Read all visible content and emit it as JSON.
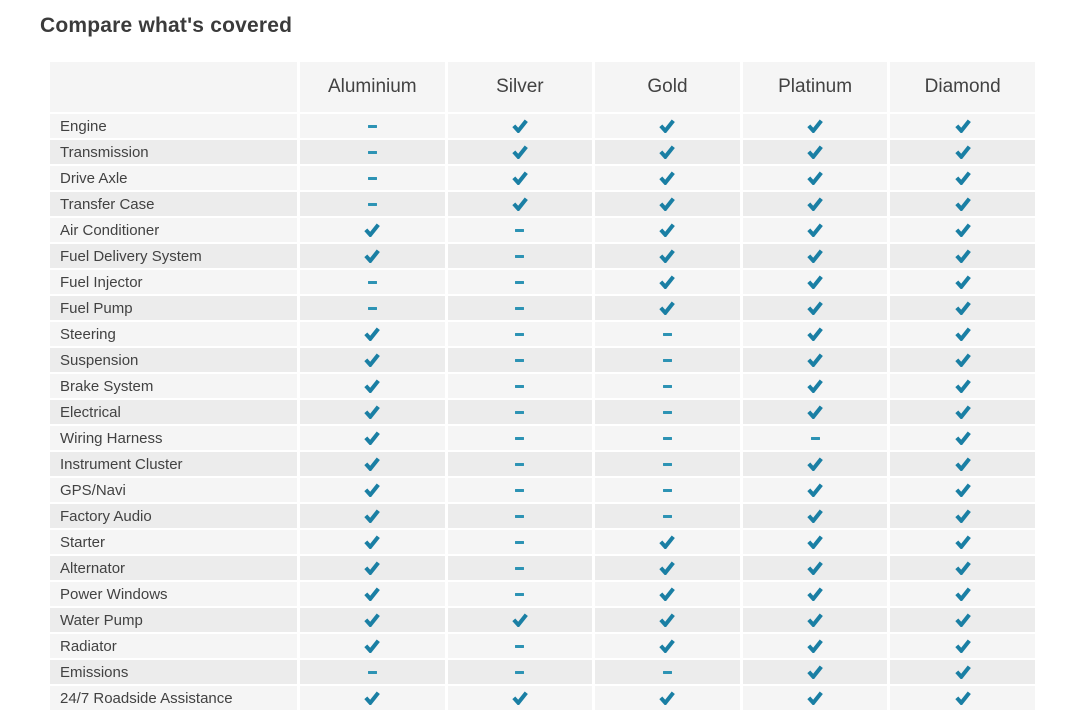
{
  "page": {
    "title": "Compare what's covered"
  },
  "table": {
    "plans": [
      "Aluminium",
      "Silver",
      "Gold",
      "Platinum",
      "Diamond"
    ],
    "rows": [
      {
        "feature": "Engine",
        "covered": [
          false,
          true,
          true,
          true,
          true
        ]
      },
      {
        "feature": "Transmission",
        "covered": [
          false,
          true,
          true,
          true,
          true
        ]
      },
      {
        "feature": "Drive Axle",
        "covered": [
          false,
          true,
          true,
          true,
          true
        ]
      },
      {
        "feature": "Transfer Case",
        "covered": [
          false,
          true,
          true,
          true,
          true
        ]
      },
      {
        "feature": "Air Conditioner",
        "covered": [
          true,
          false,
          true,
          true,
          true
        ]
      },
      {
        "feature": "Fuel Delivery System",
        "covered": [
          true,
          false,
          true,
          true,
          true
        ]
      },
      {
        "feature": "Fuel Injector",
        "covered": [
          false,
          false,
          true,
          true,
          true
        ]
      },
      {
        "feature": "Fuel Pump",
        "covered": [
          false,
          false,
          true,
          true,
          true
        ]
      },
      {
        "feature": "Steering",
        "covered": [
          true,
          false,
          false,
          true,
          true
        ]
      },
      {
        "feature": "Suspension",
        "covered": [
          true,
          false,
          false,
          true,
          true
        ]
      },
      {
        "feature": "Brake System",
        "covered": [
          true,
          false,
          false,
          true,
          true
        ]
      },
      {
        "feature": "Electrical",
        "covered": [
          true,
          false,
          false,
          true,
          true
        ]
      },
      {
        "feature": "Wiring Harness",
        "covered": [
          true,
          false,
          false,
          false,
          true
        ]
      },
      {
        "feature": "Instrument Cluster",
        "covered": [
          true,
          false,
          false,
          true,
          true
        ]
      },
      {
        "feature": "GPS/Navi",
        "covered": [
          true,
          false,
          false,
          true,
          true
        ]
      },
      {
        "feature": "Factory Audio",
        "covered": [
          true,
          false,
          false,
          true,
          true
        ]
      },
      {
        "feature": "Starter",
        "covered": [
          true,
          false,
          true,
          true,
          true
        ]
      },
      {
        "feature": "Alternator",
        "covered": [
          true,
          false,
          true,
          true,
          true
        ]
      },
      {
        "feature": "Power Windows",
        "covered": [
          true,
          false,
          true,
          true,
          true
        ]
      },
      {
        "feature": "Water Pump",
        "covered": [
          true,
          true,
          true,
          true,
          true
        ]
      },
      {
        "feature": "Radiator",
        "covered": [
          true,
          false,
          true,
          true,
          true
        ]
      },
      {
        "feature": "Emissions",
        "covered": [
          false,
          false,
          false,
          true,
          true
        ]
      },
      {
        "feature": "24/7 Roadside Assistance",
        "covered": [
          true,
          true,
          true,
          true,
          true
        ]
      }
    ],
    "legend": {
      "covered_icon": "check-icon",
      "not_covered_icon": "dash-icon"
    },
    "colors": {
      "check": "#1a7fa4",
      "dash": "#2d93b4",
      "row_light": "#f5f5f5",
      "row_dark": "#ececec",
      "header_bg": "#f5f5f5",
      "text": "#424242",
      "title": "#3b3b3b"
    }
  }
}
